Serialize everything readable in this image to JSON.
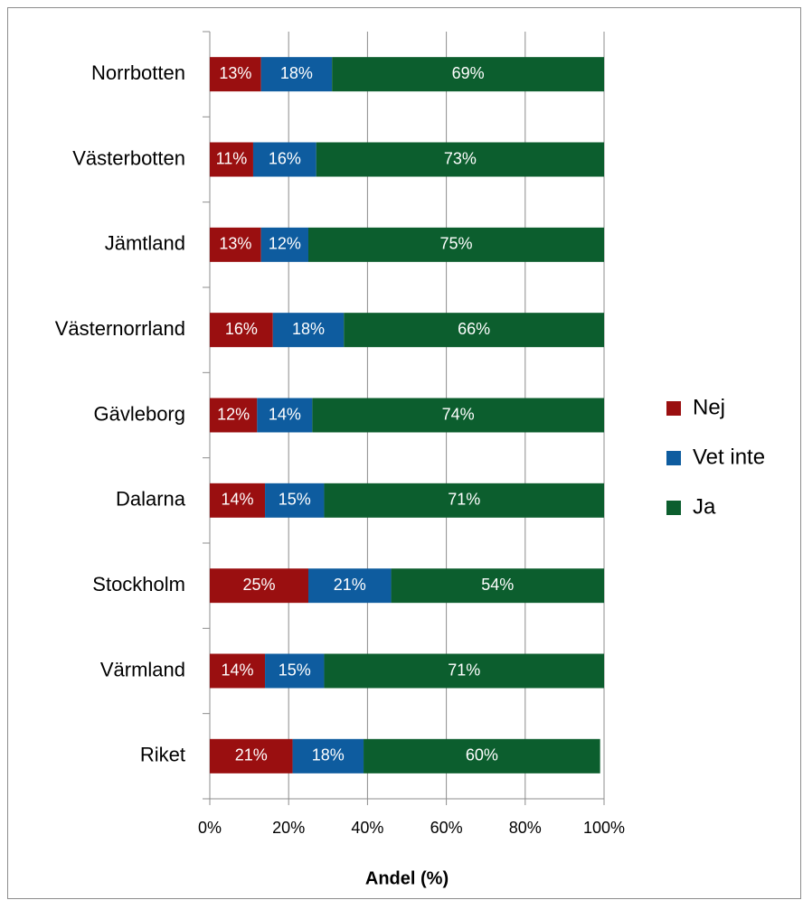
{
  "chart_data": {
    "type": "stacked_bar_horizontal",
    "categories": [
      "Norrbotten",
      "Västerbotten",
      "Jämtland",
      "Västernorrland",
      "Gävleborg",
      "Dalarna",
      "Stockholm",
      "Värmland",
      "Riket"
    ],
    "series": [
      {
        "name": "Nej",
        "color": "#9a0f10",
        "values": [
          13,
          11,
          13,
          16,
          12,
          14,
          25,
          14,
          21
        ],
        "value_labels": [
          "13%",
          "11%",
          "13%",
          "16%",
          "12%",
          "14%",
          "25%",
          "14%",
          "21%"
        ]
      },
      {
        "name": "Vet inte",
        "color": "#0e5c9f",
        "values": [
          18,
          16,
          12,
          18,
          14,
          15,
          21,
          15,
          18
        ],
        "value_labels": [
          "18%",
          "16%",
          "12%",
          "18%",
          "14%",
          "15%",
          "21%",
          "15%",
          "18%"
        ]
      },
      {
        "name": "Ja",
        "color": "#0c5e2e",
        "values": [
          69,
          73,
          75,
          66,
          74,
          71,
          54,
          71,
          60
        ],
        "value_labels": [
          "69%",
          "73%",
          "75%",
          "66%",
          "74%",
          "71%",
          "54%",
          "71%",
          "60%"
        ]
      }
    ],
    "xlim": [
      0,
      100
    ],
    "xticks": [
      {
        "value": 0,
        "label": "0%"
      },
      {
        "value": 20,
        "label": "20%"
      },
      {
        "value": 40,
        "label": "40%"
      },
      {
        "value": 60,
        "label": "60%"
      },
      {
        "value": 80,
        "label": "80%"
      },
      {
        "value": 100,
        "label": "100%"
      }
    ],
    "xlabel": "Andel (%)",
    "grid": true,
    "legend": "right"
  }
}
